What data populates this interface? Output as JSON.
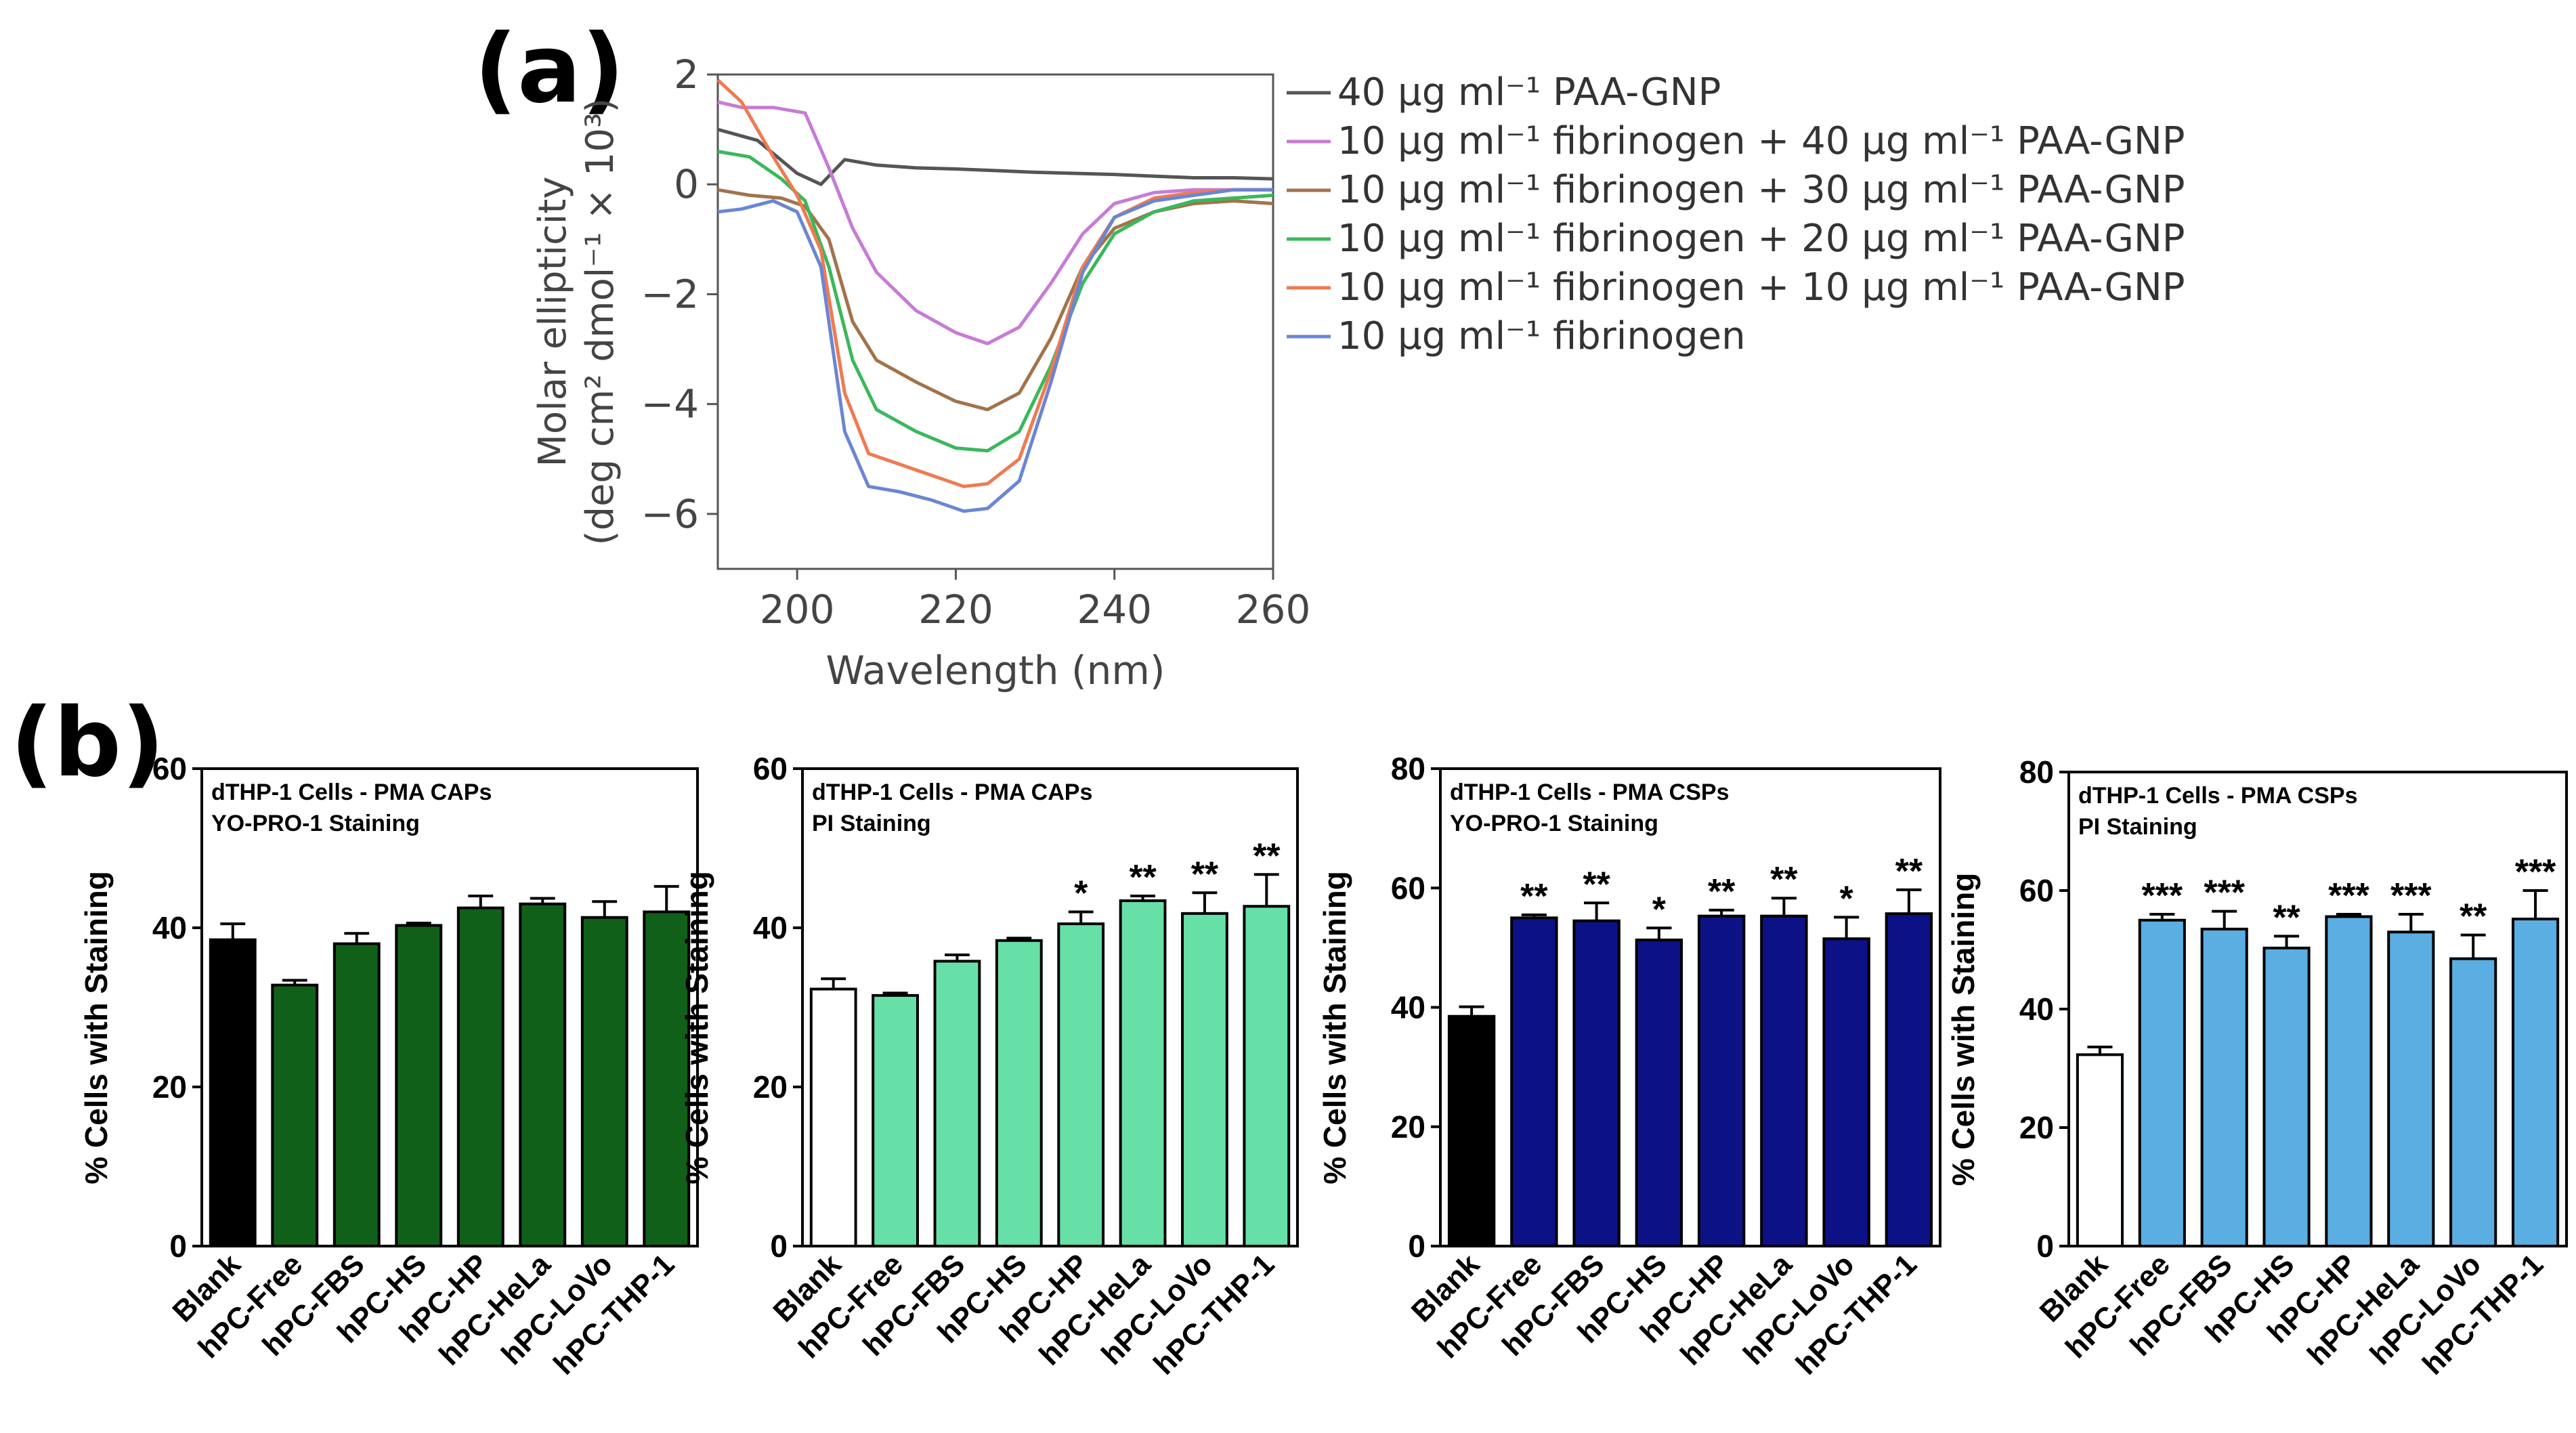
{
  "labels": {
    "a": "(a)",
    "b": "(b)"
  },
  "chart_data": [
    {
      "id": "a",
      "type": "line",
      "xlabel": "Wavelength (nm)",
      "ylabel_line1": "Molar ellipticity",
      "ylabel_line2": "(deg cm² dmol⁻¹ × 10³)",
      "xlim": [
        190,
        260
      ],
      "ylim": [
        -7,
        2
      ],
      "xticks": [
        200,
        220,
        240,
        260
      ],
      "xtick_labels": [
        "200",
        "220",
        "240",
        "260"
      ],
      "yticks": [
        2,
        0,
        -2,
        -4,
        -6
      ],
      "ytick_labels": [
        "2",
        "0",
        "−2",
        "−4",
        "−6"
      ],
      "series": [
        {
          "name": "40 μg ml⁻¹ PAA-GNP",
          "color": "#555555",
          "x": [
            190,
            195,
            200,
            203,
            206,
            210,
            215,
            220,
            225,
            230,
            235,
            240,
            245,
            250,
            255,
            260
          ],
          "y": [
            1.0,
            0.8,
            0.2,
            0.0,
            0.45,
            0.35,
            0.3,
            0.28,
            0.25,
            0.22,
            0.2,
            0.18,
            0.15,
            0.12,
            0.12,
            0.1
          ]
        },
        {
          "name": "10 μg ml⁻¹ fibrinogen + 40 μg ml⁻¹ PAA-GNP",
          "color": "#c77bd6",
          "x": [
            190,
            193,
            197,
            201,
            204,
            207,
            210,
            215,
            220,
            224,
            228,
            232,
            236,
            240,
            245,
            250,
            255,
            260
          ],
          "y": [
            1.5,
            1.4,
            1.4,
            1.3,
            0.3,
            -0.8,
            -1.6,
            -2.3,
            -2.7,
            -2.9,
            -2.6,
            -1.8,
            -0.9,
            -0.35,
            -0.15,
            -0.1,
            -0.1,
            -0.1
          ]
        },
        {
          "name": "10 μg ml⁻¹ fibrinogen + 30 μg ml⁻¹ PAA-GNP",
          "color": "#a2734a",
          "x": [
            190,
            194,
            198,
            201,
            204,
            207,
            210,
            215,
            220,
            224,
            228,
            232,
            236,
            240,
            245,
            250,
            255,
            260
          ],
          "y": [
            -0.1,
            -0.2,
            -0.25,
            -0.4,
            -1.0,
            -2.5,
            -3.2,
            -3.6,
            -3.95,
            -4.1,
            -3.8,
            -2.8,
            -1.5,
            -0.8,
            -0.5,
            -0.35,
            -0.3,
            -0.35
          ]
        },
        {
          "name": "10 μg ml⁻¹ fibrinogen + 20 μg ml⁻¹ PAA-GNP",
          "color": "#3ab85c",
          "x": [
            190,
            194,
            198,
            201,
            204,
            207,
            210,
            215,
            220,
            224,
            228,
            232,
            236,
            240,
            245,
            250,
            255,
            260
          ],
          "y": [
            0.6,
            0.5,
            0.1,
            -0.3,
            -1.5,
            -3.2,
            -4.1,
            -4.5,
            -4.8,
            -4.85,
            -4.5,
            -3.3,
            -1.8,
            -0.9,
            -0.5,
            -0.3,
            -0.25,
            -0.2
          ]
        },
        {
          "name": "10 μg ml⁻¹ fibrinogen + 10 μg ml⁻¹ PAA-GNP",
          "color": "#f07a50",
          "x": [
            190,
            193,
            197,
            200,
            203,
            206,
            209,
            213,
            217,
            221,
            224,
            228,
            232,
            236,
            240,
            245,
            250,
            255,
            260
          ],
          "y": [
            1.9,
            1.5,
            0.5,
            -0.2,
            -1.2,
            -3.8,
            -4.9,
            -5.1,
            -5.3,
            -5.5,
            -5.45,
            -5.0,
            -3.4,
            -1.5,
            -0.6,
            -0.25,
            -0.15,
            -0.1,
            -0.1
          ]
        },
        {
          "name": "10 μg ml⁻¹ fibrinogen",
          "color": "#6a86d4",
          "x": [
            190,
            193,
            197,
            200,
            203,
            206,
            209,
            213,
            217,
            221,
            224,
            228,
            232,
            236,
            240,
            245,
            250,
            255,
            260
          ],
          "y": [
            -0.5,
            -0.45,
            -0.3,
            -0.5,
            -1.5,
            -4.5,
            -5.5,
            -5.6,
            -5.75,
            -5.95,
            -5.9,
            -5.4,
            -3.6,
            -1.6,
            -0.6,
            -0.3,
            -0.2,
            -0.1,
            -0.1
          ]
        }
      ]
    },
    {
      "id": "b1",
      "type": "bar",
      "title_line1": "dTHP-1 Cells - PMA  CAPs",
      "title_line2": "YO-PRO-1 Staining",
      "ylabel": "% Cells with Staining",
      "ylim": [
        0,
        60
      ],
      "yticks": [
        0,
        20,
        40,
        60
      ],
      "ytick_labels": [
        "0",
        "20",
        "40",
        "60"
      ],
      "categories": [
        "Blank",
        "hPC-Free",
        "hPC-FBS",
        "hPC-HS",
        "hPC-HP",
        "hPC-HeLa",
        "hPC-LoVo",
        "hPC-THP-1"
      ],
      "values": [
        38.5,
        32.8,
        38.0,
        40.3,
        42.5,
        43.0,
        41.3,
        42.0
      ],
      "errors": [
        2.0,
        0.6,
        1.3,
        0.3,
        1.5,
        0.7,
        2.0,
        3.2
      ],
      "significance": [
        "",
        "",
        "",
        "",
        "",
        "",
        "",
        ""
      ],
      "colors": [
        "#000000",
        "#11601a",
        "#11601a",
        "#11601a",
        "#11601a",
        "#11601a",
        "#11601a",
        "#11601a"
      ]
    },
    {
      "id": "b2",
      "type": "bar",
      "title_line1": "dTHP-1 Cells - PMA  CAPs",
      "title_line2": "PI Staining",
      "ylabel": "% Cells with Staining",
      "ylim": [
        0,
        60
      ],
      "yticks": [
        0,
        20,
        40,
        60
      ],
      "ytick_labels": [
        "0",
        "20",
        "40",
        "60"
      ],
      "categories": [
        "Blank",
        "hPC-Free",
        "hPC-FBS",
        "hPC-HS",
        "hPC-HP",
        "hPC-HeLa",
        "hPC-LoVo",
        "hPC-THP-1"
      ],
      "values": [
        32.3,
        31.5,
        35.8,
        38.4,
        40.5,
        43.4,
        41.8,
        42.7
      ],
      "errors": [
        1.3,
        0.3,
        0.8,
        0.3,
        1.5,
        0.6,
        2.6,
        4.0
      ],
      "significance": [
        "",
        "",
        "",
        "",
        "*",
        "**",
        "**",
        "**"
      ],
      "colors": [
        "#ffffff",
        "#66e0a6",
        "#66e0a6",
        "#66e0a6",
        "#66e0a6",
        "#66e0a6",
        "#66e0a6",
        "#66e0a6"
      ]
    },
    {
      "id": "b3",
      "type": "bar",
      "title_line1": "dTHP-1 Cells - PMA CSPs",
      "title_line2": "YO-PRO-1 Staining",
      "ylabel": "% Cells with Staining",
      "ylim": [
        0,
        80
      ],
      "yticks": [
        0,
        20,
        40,
        60,
        80
      ],
      "ytick_labels": [
        "0",
        "20",
        "40",
        "60",
        "80"
      ],
      "categories": [
        "Blank",
        "hPC-Free",
        "hPC-FBS",
        "hPC-HS",
        "hPC-HP",
        "hPC-HeLa",
        "hPC-LoVo",
        "hPC-THP-1"
      ],
      "values": [
        38.5,
        55.0,
        54.5,
        51.3,
        55.3,
        55.3,
        51.5,
        55.7
      ],
      "errors": [
        1.6,
        0.5,
        3.0,
        2.0,
        1.0,
        3.0,
        3.6,
        4.0
      ],
      "significance": [
        "",
        "**",
        "**",
        "*",
        "**",
        "**",
        "*",
        "**"
      ],
      "colors": [
        "#000000",
        "#0c1186",
        "#0c1186",
        "#0c1186",
        "#0c1186",
        "#0c1186",
        "#0c1186",
        "#0c1186"
      ]
    },
    {
      "id": "b4",
      "type": "bar",
      "title_line1": "dTHP-1 Cells - PMA CSPs",
      "title_line2": "PI Staining",
      "ylabel": "% Cells with Staining",
      "ylim": [
        0,
        80
      ],
      "yticks": [
        0,
        20,
        40,
        60,
        80
      ],
      "ytick_labels": [
        "0",
        "20",
        "40",
        "60",
        "80"
      ],
      "categories": [
        "Blank",
        "hPC-Free",
        "hPC-FBS",
        "hPC-HS",
        "hPC-HP",
        "hPC-HeLa",
        "hPC-LoVo",
        "hPC-THP-1"
      ],
      "values": [
        32.3,
        55.0,
        53.5,
        50.3,
        55.6,
        53.0,
        48.5,
        55.2
      ],
      "errors": [
        1.3,
        1.0,
        3.0,
        2.0,
        0.4,
        3.0,
        4.0,
        4.8
      ],
      "significance": [
        "",
        "***",
        "***",
        "**",
        "***",
        "***",
        "**",
        "***"
      ],
      "colors": [
        "#ffffff",
        "#5aaee2",
        "#5aaee2",
        "#5aaee2",
        "#5aaee2",
        "#5aaee2",
        "#5aaee2",
        "#5aaee2"
      ]
    }
  ]
}
